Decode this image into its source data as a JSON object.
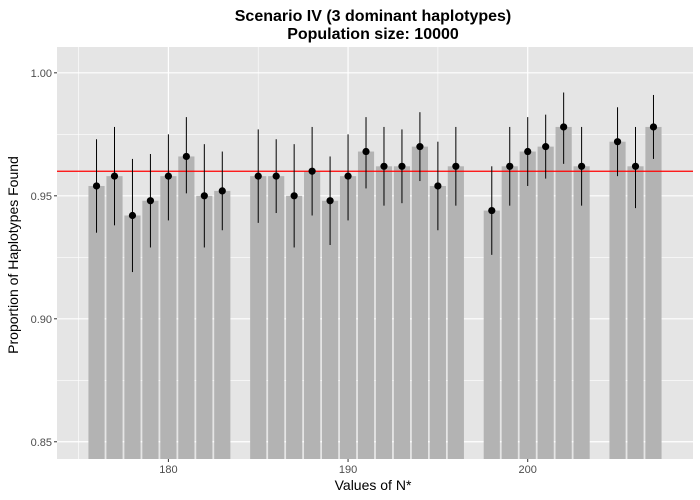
{
  "chart_data": {
    "type": "bar",
    "title": "Scenario IV (3 dominant haplotypes)",
    "subtitle": "Population size: 10000",
    "xlabel": "Values of N*",
    "ylabel": "Proportion of Haplotypes Found",
    "xlim": [
      173.8,
      209.2
    ],
    "ylim": [
      0.843,
      1.0105
    ],
    "x_ticks": [
      180,
      190,
      200
    ],
    "x_tick_labels": [
      "180",
      "190",
      "200"
    ],
    "y_ticks": [
      0.85,
      0.9,
      0.95,
      1.0
    ],
    "y_tick_labels": [
      "0.85",
      "0.90",
      "0.95",
      "1.00"
    ],
    "reference_line": 0.96,
    "colors": {
      "panel": "#e5e5e5",
      "grid": "#ffffff",
      "bar": "#b3b3b3",
      "point": "#000000",
      "errorbar": "#000000",
      "reference_line": "#ff0000"
    },
    "x": [
      176,
      177,
      178,
      179,
      180,
      181,
      182,
      183,
      185,
      186,
      187,
      188,
      189,
      190,
      191,
      192,
      193,
      194,
      195,
      196,
      198,
      199,
      200,
      201,
      202,
      203,
      205,
      206,
      207
    ],
    "values": [
      0.954,
      0.958,
      0.942,
      0.948,
      0.958,
      0.966,
      0.95,
      0.952,
      0.958,
      0.958,
      0.95,
      0.96,
      0.948,
      0.958,
      0.968,
      0.962,
      0.962,
      0.97,
      0.954,
      0.962,
      0.944,
      0.962,
      0.968,
      0.97,
      0.978,
      0.962,
      0.972,
      0.962,
      0.978
    ],
    "error_low": [
      0.935,
      0.938,
      0.919,
      0.929,
      0.94,
      0.951,
      0.929,
      0.936,
      0.939,
      0.943,
      0.929,
      0.942,
      0.93,
      0.94,
      0.953,
      0.946,
      0.947,
      0.956,
      0.936,
      0.946,
      0.926,
      0.946,
      0.954,
      0.957,
      0.963,
      0.946,
      0.958,
      0.945,
      0.965
    ],
    "error_high": [
      0.973,
      0.978,
      0.965,
      0.967,
      0.975,
      0.982,
      0.971,
      0.968,
      0.977,
      0.973,
      0.971,
      0.978,
      0.966,
      0.975,
      0.982,
      0.978,
      0.977,
      0.984,
      0.972,
      0.978,
      0.962,
      0.978,
      0.982,
      0.983,
      0.992,
      0.978,
      0.986,
      0.978,
      0.991
    ]
  }
}
